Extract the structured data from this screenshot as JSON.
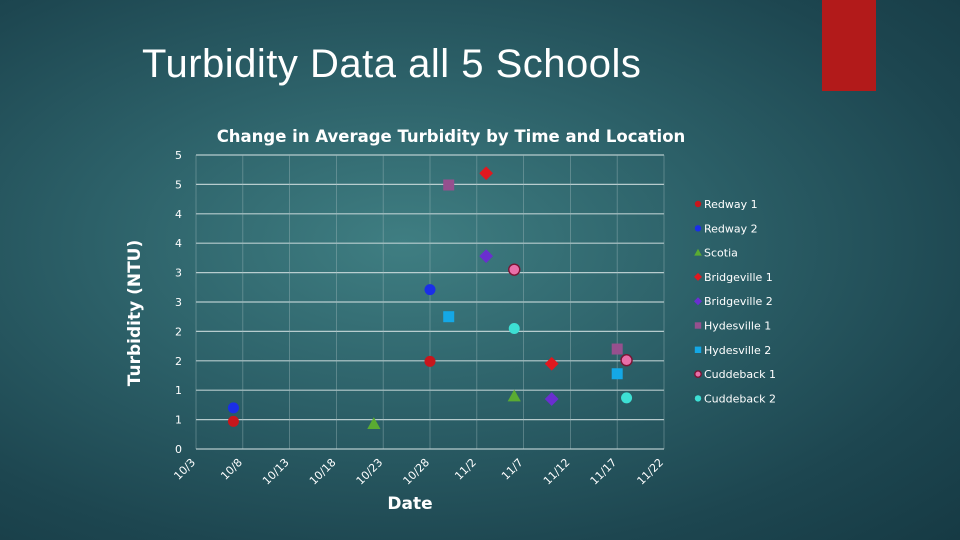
{
  "slide": {
    "title": "Turbidity Data all 5 Schools",
    "accent_color": "#b21a1a"
  },
  "chart_data": {
    "type": "scatter",
    "title": "Change in Average Turbidity by Time and Location",
    "xlabel": "Date",
    "ylabel": "Turbidity (NTU)",
    "x_tick_labels": [
      "10/3",
      "10/8",
      "10/13",
      "10/18",
      "10/23",
      "10/28",
      "11/2",
      "11/7",
      "11/12",
      "11/17",
      "11/22"
    ],
    "x_ticks": [
      "2023-10-03",
      "2023-10-08",
      "2023-10-13",
      "2023-10-18",
      "2023-10-23",
      "2023-10-28",
      "2023-11-02",
      "2023-11-07",
      "2023-11-12",
      "2023-11-17",
      "2023-11-22"
    ],
    "xlim": [
      "2023-10-03",
      "2023-11-22"
    ],
    "y_tick_labels": [
      "0",
      "1",
      "1",
      "2",
      "2",
      "3",
      "3",
      "4",
      "4",
      "5",
      "5"
    ],
    "y_ticks": [
      0,
      0.5,
      1,
      1.5,
      2,
      2.5,
      3,
      3.5,
      4,
      4.5,
      5
    ],
    "ylim": [
      0,
      5
    ],
    "grid": "horizontal",
    "legend_position": "right",
    "series": [
      {
        "name": "Redway 1",
        "marker": "circle",
        "color": "#c8161c",
        "points": [
          {
            "x": "2023-10-07",
            "y": 0.47
          },
          {
            "x": "2023-10-28",
            "y": 1.49
          }
        ]
      },
      {
        "name": "Redway 2",
        "marker": "circle",
        "color": "#1a2ee8",
        "points": [
          {
            "x": "2023-10-07",
            "y": 0.7
          },
          {
            "x": "2023-10-28",
            "y": 2.71
          }
        ]
      },
      {
        "name": "Scotia",
        "marker": "triangle",
        "color": "#5aab32",
        "points": [
          {
            "x": "2023-10-22",
            "y": 0.43
          },
          {
            "x": "2023-11-06",
            "y": 0.9
          }
        ]
      },
      {
        "name": "Bridgeville 1",
        "marker": "diamond",
        "color": "#e0181f",
        "points": [
          {
            "x": "2023-11-03",
            "y": 4.69
          },
          {
            "x": "2023-11-10",
            "y": 1.45
          }
        ]
      },
      {
        "name": "Bridgeville 2",
        "marker": "diamond",
        "color": "#6a2ed0",
        "points": [
          {
            "x": "2023-11-03",
            "y": 3.28
          },
          {
            "x": "2023-11-10",
            "y": 0.85
          }
        ]
      },
      {
        "name": "Hydesville 1",
        "marker": "square",
        "color": "#96508e",
        "points": [
          {
            "x": "2023-10-30",
            "y": 4.49
          },
          {
            "x": "2023-11-17",
            "y": 1.7
          }
        ]
      },
      {
        "name": "Hydesville 2",
        "marker": "square",
        "color": "#14a8e6",
        "points": [
          {
            "x": "2023-10-30",
            "y": 2.25
          },
          {
            "x": "2023-11-17",
            "y": 1.28
          }
        ]
      },
      {
        "name": "Cuddeback 1",
        "marker": "circle-outlined",
        "color": "#e96fa9",
        "points": [
          {
            "x": "2023-11-06",
            "y": 3.05
          },
          {
            "x": "2023-11-18",
            "y": 1.51
          }
        ]
      },
      {
        "name": "Cuddeback 2",
        "marker": "circle",
        "color": "#3de0d4",
        "points": [
          {
            "x": "2023-11-06",
            "y": 2.05
          },
          {
            "x": "2023-11-18",
            "y": 0.87
          }
        ]
      }
    ]
  }
}
